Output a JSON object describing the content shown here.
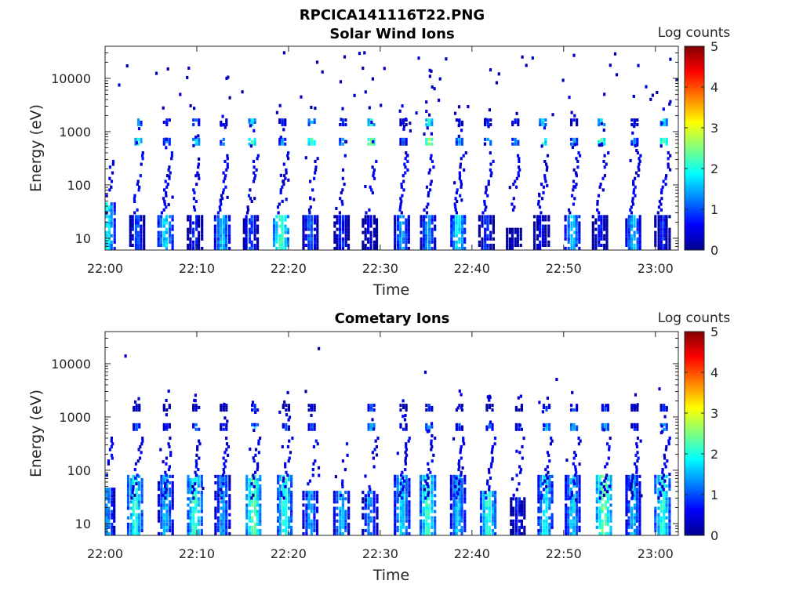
{
  "figure_title": "RPCICA141116T22.PNG",
  "chart_data": [
    {
      "type": "heatmap",
      "title": "Solar Wind Ions",
      "xlabel": "Time",
      "ylabel": "Energy (eV)",
      "x_tick_labels": [
        "22:00",
        "22:10",
        "22:20",
        "22:30",
        "22:40",
        "22:50",
        "23:00"
      ],
      "x_tick_minutes": [
        0,
        10,
        20,
        30,
        40,
        50,
        60
      ],
      "xlim_minutes": [
        0,
        62.5
      ],
      "y_scale": "log",
      "ylim": [
        6,
        40000
      ],
      "y_tick_labels": [
        "10",
        "100",
        "1000",
        "10000"
      ],
      "y_tick_values": [
        10,
        100,
        1000,
        10000
      ],
      "colorbar": {
        "label": "Log counts",
        "range": [
          0,
          5
        ],
        "tick_labels": [
          "0",
          "1",
          "2",
          "3",
          "4",
          "5"
        ],
        "colormap": "jet"
      },
      "pulses": [
        {
          "t": 0.3,
          "low": [
            6,
            50
          ],
          "low_z": 2.0,
          "mid_z": 0.0,
          "sparse": 0.4
        },
        {
          "t": 3.5,
          "low": [
            6,
            28
          ],
          "low_z": 1.2,
          "mid_z": 2.0,
          "sparse": 0.5
        },
        {
          "t": 6.6,
          "low": [
            6,
            28
          ],
          "low_z": 1.9,
          "mid_z": 1.3,
          "sparse": 0.6
        },
        {
          "t": 9.8,
          "low": [
            6,
            28
          ],
          "low_z": 1.0,
          "mid_z": 1.8,
          "sparse": 0.5
        },
        {
          "t": 12.8,
          "low": [
            6,
            28
          ],
          "low_z": 1.8,
          "mid_z": 1.4,
          "sparse": 0.6
        },
        {
          "t": 15.9,
          "low": [
            6,
            28
          ],
          "low_z": 1.2,
          "mid_z": 2.3,
          "sparse": 0.5
        },
        {
          "t": 19.2,
          "low": [
            6,
            28
          ],
          "low_z": 2.4,
          "mid_z": 1.4,
          "sparse": 0.6
        },
        {
          "t": 22.4,
          "low": [
            6,
            28
          ],
          "low_z": 1.3,
          "mid_z": 2.2,
          "sparse": 0.5
        },
        {
          "t": 25.8,
          "low": [
            6,
            28
          ],
          "low_z": 1.0,
          "mid_z": 1.4,
          "sparse": 0.4
        },
        {
          "t": 28.9,
          "low": [
            6,
            28
          ],
          "low_z": 0.7,
          "mid_z": 2.6,
          "sparse": 0.5
        },
        {
          "t": 32.4,
          "low": [
            6,
            28
          ],
          "low_z": 1.6,
          "mid_z": 1.0,
          "sparse": 0.7
        },
        {
          "t": 35.2,
          "low": [
            6,
            28
          ],
          "low_z": 1.5,
          "mid_z": 2.6,
          "sparse": 0.6
        },
        {
          "t": 38.5,
          "low": [
            6,
            28
          ],
          "low_z": 2.0,
          "mid_z": 1.4,
          "sparse": 0.7
        },
        {
          "t": 41.6,
          "low": [
            6,
            28
          ],
          "low_z": 1.0,
          "mid_z": 1.5,
          "sparse": 0.5
        },
        {
          "t": 44.6,
          "low": [
            6,
            16
          ],
          "low_z": 0.6,
          "mid_z": 1.3,
          "sparse": 0.4
        },
        {
          "t": 47.6,
          "low": [
            6,
            28
          ],
          "low_z": 0.8,
          "mid_z": 2.2,
          "sparse": 0.5
        },
        {
          "t": 51.0,
          "low": [
            6,
            28
          ],
          "low_z": 1.8,
          "mid_z": 1.4,
          "sparse": 0.6
        },
        {
          "t": 54.0,
          "low": [
            6,
            28
          ],
          "low_z": 0.9,
          "mid_z": 2.4,
          "sparse": 0.5
        },
        {
          "t": 57.6,
          "low": [
            6,
            28
          ],
          "low_z": 1.7,
          "mid_z": 1.3,
          "sparse": 0.7
        },
        {
          "t": 60.8,
          "low": [
            6,
            28
          ],
          "low_z": 0.9,
          "mid_z": 2.4,
          "sparse": 0.6
        }
      ]
    },
    {
      "type": "heatmap",
      "title": "Cometary Ions",
      "xlabel": "Time",
      "ylabel": "Energy (eV)",
      "x_tick_labels": [
        "22:00",
        "22:10",
        "22:20",
        "22:30",
        "22:40",
        "22:50",
        "23:00"
      ],
      "x_tick_minutes": [
        0,
        10,
        20,
        30,
        40,
        50,
        60
      ],
      "xlim_minutes": [
        0,
        62.5
      ],
      "y_scale": "log",
      "ylim": [
        6,
        40000
      ],
      "y_tick_labels": [
        "10",
        "100",
        "1000",
        "10000"
      ],
      "y_tick_values": [
        10,
        100,
        1000,
        10000
      ],
      "colorbar": {
        "label": "Log counts",
        "range": [
          0,
          5
        ],
        "tick_labels": [
          "0",
          "1",
          "2",
          "3",
          "4",
          "5"
        ],
        "colormap": "jet"
      },
      "pulses": [
        {
          "t": 0.3,
          "low": [
            6,
            50
          ],
          "low_z": 1.5,
          "mid_z": 0.0,
          "sparse": 0.4
        },
        {
          "t": 3.3,
          "low": [
            6,
            80
          ],
          "low_z": 2.2,
          "mid_z": 1.0,
          "sparse": 0.5
        },
        {
          "t": 6.6,
          "low": [
            6,
            80
          ],
          "low_z": 1.7,
          "mid_z": 0.8,
          "sparse": 0.6
        },
        {
          "t": 9.8,
          "low": [
            6,
            80
          ],
          "low_z": 2.3,
          "mid_z": 1.2,
          "sparse": 0.5
        },
        {
          "t": 12.8,
          "low": [
            6,
            80
          ],
          "low_z": 1.6,
          "mid_z": 0.8,
          "sparse": 0.6
        },
        {
          "t": 16.2,
          "low": [
            6,
            80
          ],
          "low_z": 2.5,
          "mid_z": 1.6,
          "sparse": 0.6
        },
        {
          "t": 19.6,
          "low": [
            6,
            80
          ],
          "low_z": 2.2,
          "mid_z": 0.9,
          "sparse": 0.5
        },
        {
          "t": 22.4,
          "low": [
            6,
            40
          ],
          "low_z": 1.6,
          "mid_z": 1.0,
          "sparse": 0.4
        },
        {
          "t": 25.8,
          "low": [
            6,
            40
          ],
          "low_z": 1.7,
          "mid_z": 0.0,
          "sparse": 0.3
        },
        {
          "t": 28.9,
          "low": [
            6,
            40
          ],
          "low_z": 1.5,
          "mid_z": 1.6,
          "sparse": 0.4
        },
        {
          "t": 32.4,
          "low": [
            6,
            80
          ],
          "low_z": 1.9,
          "mid_z": 0.9,
          "sparse": 0.7
        },
        {
          "t": 35.2,
          "low": [
            6,
            80
          ],
          "low_z": 2.3,
          "mid_z": 1.4,
          "sparse": 0.6
        },
        {
          "t": 38.5,
          "low": [
            6,
            80
          ],
          "low_z": 1.8,
          "mid_z": 0.9,
          "sparse": 0.7
        },
        {
          "t": 41.8,
          "low": [
            6,
            40
          ],
          "low_z": 2.2,
          "mid_z": 1.0,
          "sparse": 0.6
        },
        {
          "t": 45.0,
          "low": [
            6,
            30
          ],
          "low_z": 0.9,
          "mid_z": 0.8,
          "sparse": 0.3
        },
        {
          "t": 48.0,
          "low": [
            6,
            80
          ],
          "low_z": 2.0,
          "mid_z": 1.5,
          "sparse": 0.5
        },
        {
          "t": 51.0,
          "low": [
            6,
            80
          ],
          "low_z": 1.8,
          "mid_z": 1.6,
          "sparse": 0.6
        },
        {
          "t": 54.4,
          "low": [
            6,
            80
          ],
          "low_z": 2.6,
          "mid_z": 1.6,
          "sparse": 0.6
        },
        {
          "t": 57.6,
          "low": [
            6,
            80
          ],
          "low_z": 1.7,
          "mid_z": 0.8,
          "sparse": 0.7
        },
        {
          "t": 60.8,
          "low": [
            6,
            80
          ],
          "low_z": 2.2,
          "mid_z": 1.5,
          "sparse": 0.7
        }
      ]
    }
  ]
}
